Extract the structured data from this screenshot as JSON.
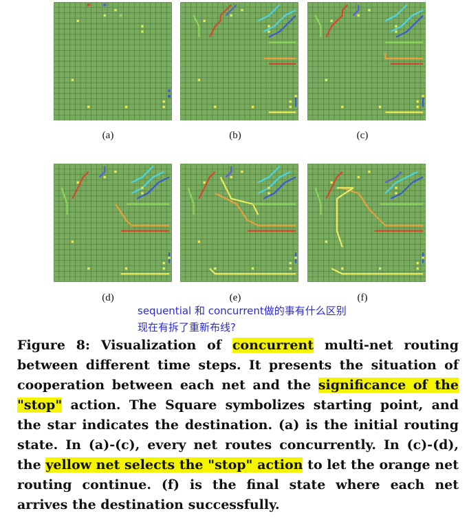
{
  "colors": {
    "grid_bg": "#7aac5f",
    "grid_line": "#4f7f3e",
    "red": "#d9452b",
    "orange": "#e8a03c",
    "yellow": "#eeeb5a",
    "light_green": "#8ed65a",
    "purple": "#5a5fcf",
    "blue": "#3a5ad0",
    "cyan": "#4ed3e8",
    "highlight": "#f5f500",
    "annotation": "#2b2bd6"
  },
  "panels": [
    {
      "label": "(a)"
    },
    {
      "label": "(b)"
    },
    {
      "label": "(c)"
    },
    {
      "label": "(d)"
    },
    {
      "label": "(e)"
    },
    {
      "label": "(f)"
    }
  ],
  "annotation": {
    "line1": "sequential 和 concurrent做的事有什么区别",
    "line2": "现在有拆了重新布线?"
  },
  "caption": {
    "p1": "Figure 8: Visualization of ",
    "h1": "concurrent",
    "p2": " multi-net routing between different time steps. It presents the situation of cooperation between each net and the ",
    "h2": "significance of the \"stop\"",
    "p3": " action. The Square symbolizes starting point, and the star indicates the destination. (a) is the initial routing state. In (a)-(c), every net routes concurrently. In (c)-(d), the ",
    "h3": "yellow net selects the \"stop\" action",
    "p4": " to let the orange net routing continue. (f) is the final state where each net arrives the destination successfully."
  }
}
